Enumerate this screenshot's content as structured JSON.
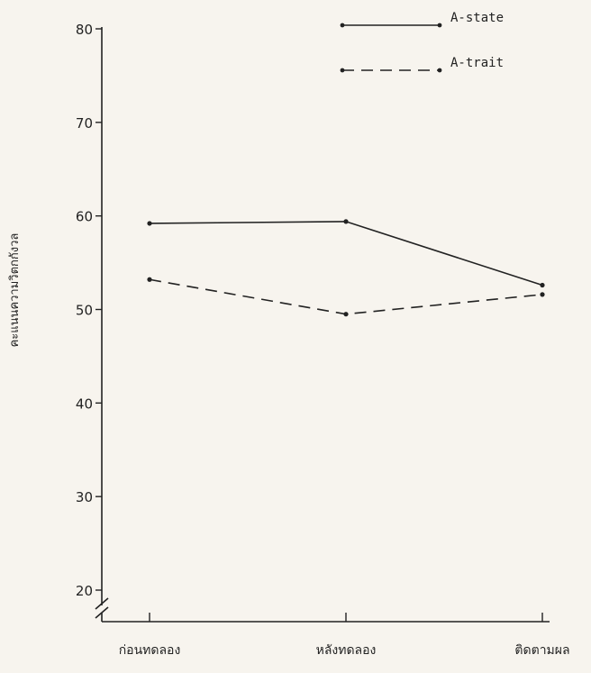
{
  "chart_data": {
    "type": "line",
    "title": "",
    "xlabel": "",
    "ylabel": "คะแนนความวิตกกังวล",
    "ylim": [
      20,
      80
    ],
    "yticks": [
      20,
      30,
      40,
      50,
      60,
      70,
      80
    ],
    "categories": [
      "ก่อนทดลอง",
      "หลังทดลอง",
      "ติดตามผล"
    ],
    "axis_break": true,
    "grid": false,
    "legend_position": "top-right",
    "series": [
      {
        "name": "A-state",
        "style": "solid",
        "values": [
          59.2,
          59.4,
          52.6
        ]
      },
      {
        "name": "A-trait",
        "style": "dashed",
        "values": [
          53.2,
          49.5,
          51.6
        ]
      }
    ]
  }
}
